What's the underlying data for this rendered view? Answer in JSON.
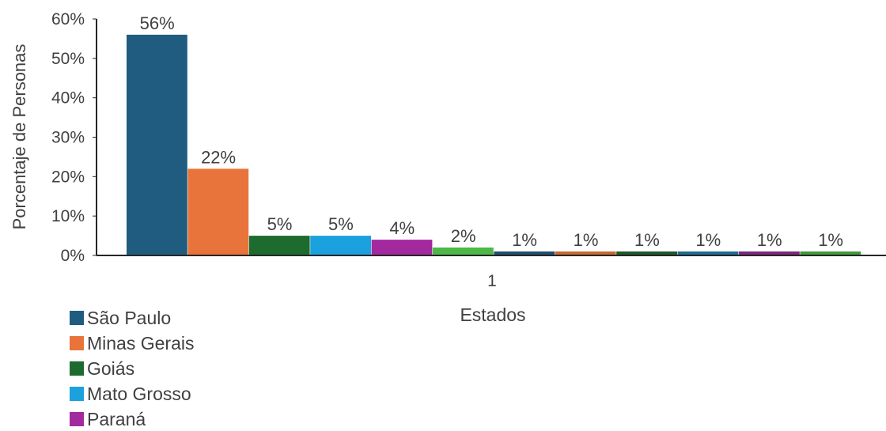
{
  "chart_data": {
    "type": "bar",
    "title": "",
    "xlabel": "Estados",
    "ylabel": "Porcentaje de Personas",
    "categories": [
      "1"
    ],
    "ylim": [
      0,
      60
    ],
    "yticks": [
      "0%",
      "10%",
      "20%",
      "30%",
      "40%",
      "50%",
      "60%"
    ],
    "grid": false,
    "legend_position": "bottom-left",
    "series": [
      {
        "name": "São Paulo",
        "values": [
          56
        ],
        "label": "56%",
        "color": "#1f5c7f"
      },
      {
        "name": "Minas Gerais",
        "values": [
          22
        ],
        "label": "22%",
        "color": "#e8743b"
      },
      {
        "name": "Goiás",
        "values": [
          5
        ],
        "label": "5%",
        "color": "#1d6b2e"
      },
      {
        "name": "Mato Grosso",
        "values": [
          5
        ],
        "label": "5%",
        "color": "#1ba1dd"
      },
      {
        "name": "Paraná",
        "values": [
          4
        ],
        "label": "4%",
        "color": "#a3299f"
      },
      {
        "name": "",
        "values": [
          2
        ],
        "label": "2%",
        "color": "#4cb846"
      },
      {
        "name": "",
        "values": [
          1
        ],
        "label": "1%",
        "color": "#1f4e6e"
      },
      {
        "name": "",
        "values": [
          1
        ],
        "label": "1%",
        "color": "#c9682f"
      },
      {
        "name": "",
        "values": [
          1
        ],
        "label": "1%",
        "color": "#1d5a2a"
      },
      {
        "name": "",
        "values": [
          1
        ],
        "label": "1%",
        "color": "#1e6d96"
      },
      {
        "name": "",
        "values": [
          1
        ],
        "label": "1%",
        "color": "#7f267e"
      },
      {
        "name": "",
        "values": [
          1
        ],
        "label": "1%",
        "color": "#3f9b3a"
      }
    ]
  }
}
